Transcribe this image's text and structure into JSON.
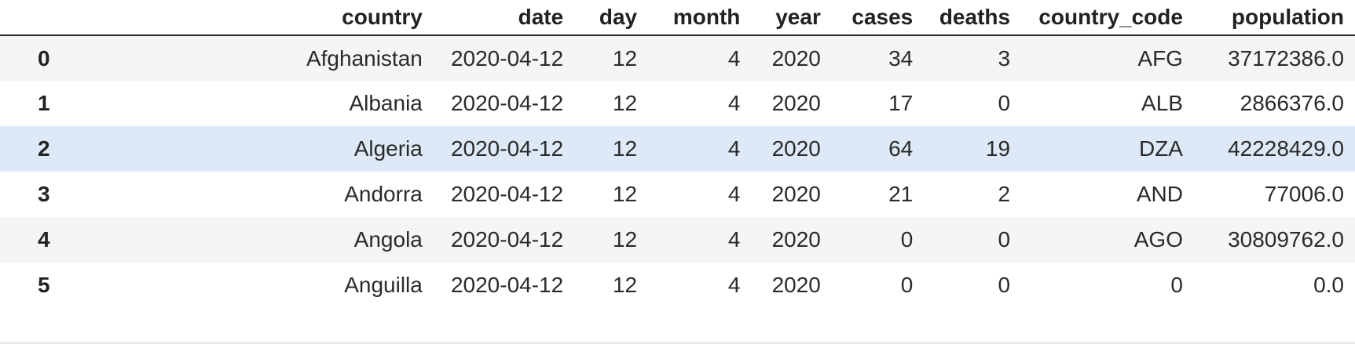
{
  "dataframe": {
    "columns": [
      "country",
      "date",
      "day",
      "month",
      "year",
      "cases",
      "deaths",
      "country_code",
      "population"
    ],
    "rows": [
      {
        "index": "0",
        "country": "Afghanistan",
        "date": "2020-04-12",
        "day": "12",
        "month": "4",
        "year": "2020",
        "cases": "34",
        "deaths": "3",
        "country_code": "AFG",
        "population": "37172386.0"
      },
      {
        "index": "1",
        "country": "Albania",
        "date": "2020-04-12",
        "day": "12",
        "month": "4",
        "year": "2020",
        "cases": "17",
        "deaths": "0",
        "country_code": "ALB",
        "population": "2866376.0"
      },
      {
        "index": "2",
        "country": "Algeria",
        "date": "2020-04-12",
        "day": "12",
        "month": "4",
        "year": "2020",
        "cases": "64",
        "deaths": "19",
        "country_code": "DZA",
        "population": "42228429.0"
      },
      {
        "index": "3",
        "country": "Andorra",
        "date": "2020-04-12",
        "day": "12",
        "month": "4",
        "year": "2020",
        "cases": "21",
        "deaths": "2",
        "country_code": "AND",
        "population": "77006.0"
      },
      {
        "index": "4",
        "country": "Angola",
        "date": "2020-04-12",
        "day": "12",
        "month": "4",
        "year": "2020",
        "cases": "0",
        "deaths": "0",
        "country_code": "AGO",
        "population": "30809762.0"
      },
      {
        "index": "5",
        "country": "Anguilla",
        "date": "2020-04-12",
        "day": "12",
        "month": "4",
        "year": "2020",
        "cases": "0",
        "deaths": "0",
        "country_code": "0",
        "population": "0.0"
      }
    ]
  },
  "colors": {
    "text": "#2a2a2a",
    "header_text": "#222222",
    "header_rule": "#2b2b2b",
    "row_alt": "#f5f5f5",
    "row_highlight": "#dde9f6",
    "row_plain": "#ffffff"
  }
}
